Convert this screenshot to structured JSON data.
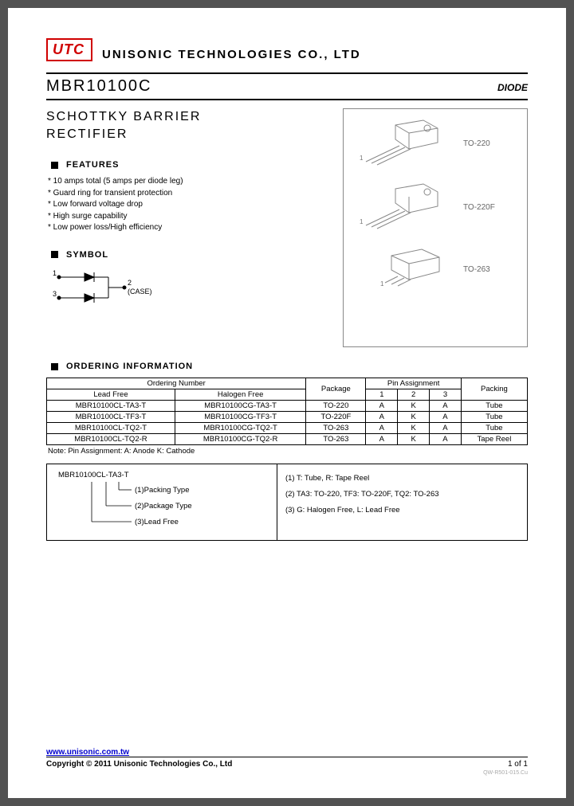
{
  "logo_text": "UTC",
  "company_name": "UNISONIC TECHNOLOGIES CO., LTD",
  "part_number": "MBR10100C",
  "category": "DIODE",
  "product_title_1": "SCHOTTKY BARRIER",
  "product_title_2": "RECTIFIER",
  "features_label": "FEATURES",
  "features": [
    "* 10 amps total (5 amps per diode leg)",
    "* Guard ring for transient protection",
    "* Low forward voltage drop",
    "* High surge capability",
    "* Low power loss/High efficiency"
  ],
  "symbol_label": "SYMBOL",
  "symbol_pins": {
    "p1": "1",
    "p2": "2",
    "p3": "3",
    "case": "(CASE)"
  },
  "packages": [
    "TO-220",
    "TO-220F",
    "TO-263"
  ],
  "ordering_label": "ORDERING INFORMATION",
  "ordering_headers": {
    "ordering_number": "Ordering Number",
    "lead_free": "Lead Free",
    "halogen_free": "Halogen Free",
    "package": "Package",
    "pin_assignment": "Pin Assignment",
    "pin1": "1",
    "pin2": "2",
    "pin3": "3",
    "packing": "Packing"
  },
  "ordering_rows": [
    [
      "MBR10100CL-TA3-T",
      "MBR10100CG-TA3-T",
      "TO-220",
      "A",
      "K",
      "A",
      "Tube"
    ],
    [
      "MBR10100CL-TF3-T",
      "MBR10100CG-TF3-T",
      "TO-220F",
      "A",
      "K",
      "A",
      "Tube"
    ],
    [
      "MBR10100CL-TQ2-T",
      "MBR10100CG-TQ2-T",
      "TO-263",
      "A",
      "K",
      "A",
      "Tube"
    ],
    [
      "MBR10100CL-TQ2-R",
      "MBR10100CG-TQ2-R",
      "TO-263",
      "A",
      "K",
      "A",
      "Tape Reel"
    ]
  ],
  "note": "Note: Pin Assignment: A: Anode   K: Cathode",
  "legend": {
    "example": "MBR10100CL-TA3-T",
    "l1": "(1)Packing Type",
    "l2": "(2)Package Type",
    "l3": "(3)Lead Free",
    "r1": "(1) T: Tube, R: Tape Reel",
    "r2": "(2) TA3: TO-220, TF3: TO-220F, TQ2: TO-263",
    "r3": "(3) G: Halogen Free, L: Lead Free"
  },
  "url": "www.unisonic.com.tw",
  "copyright": "Copyright © 2011 Unisonic Technologies Co., Ltd",
  "page_num": "1 of 1",
  "doc_code": "QW-R501-015.Cu"
}
